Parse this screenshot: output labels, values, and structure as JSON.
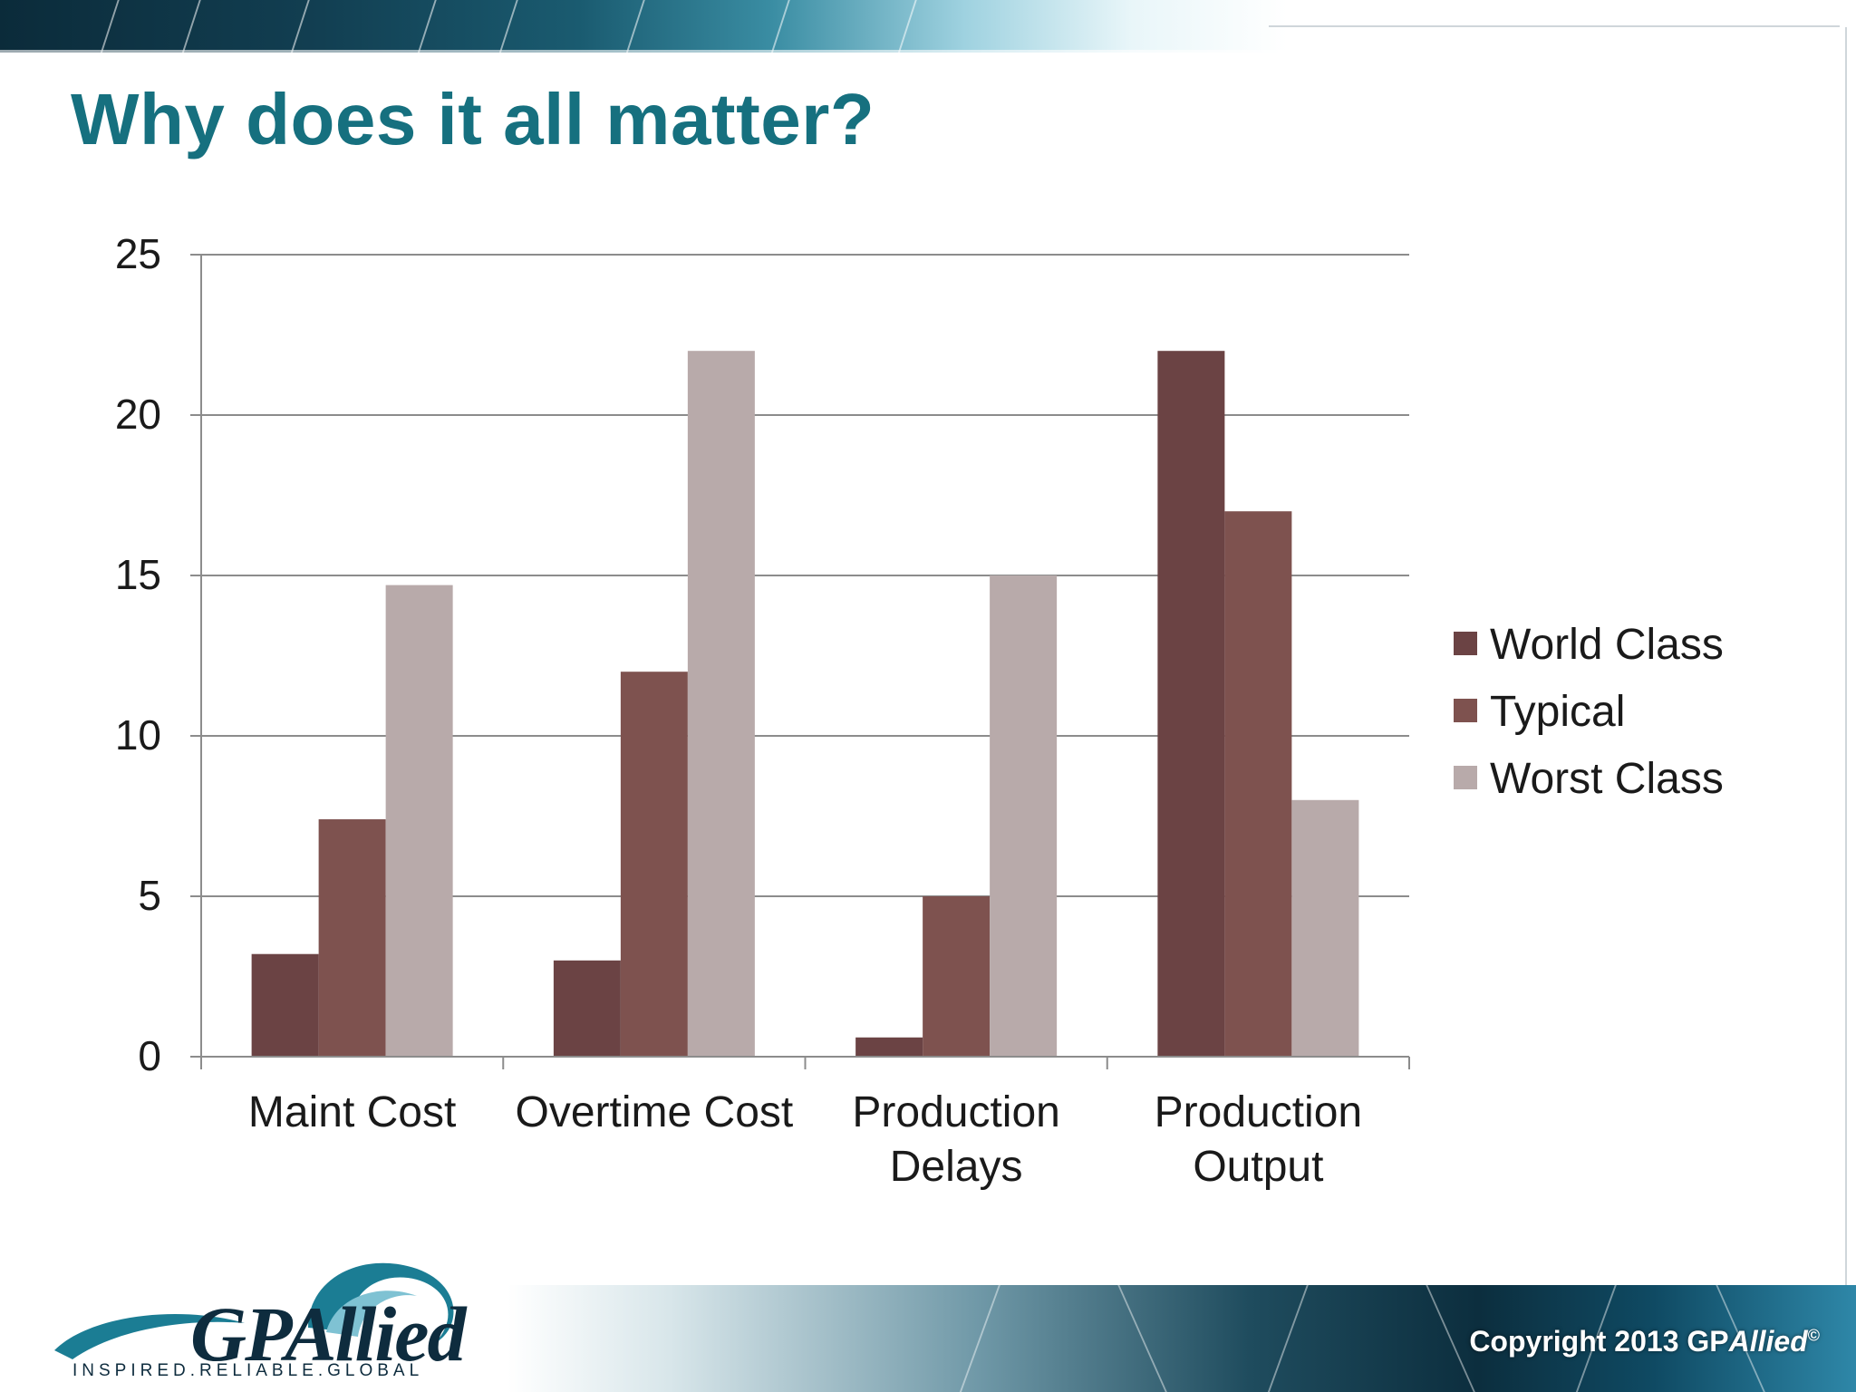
{
  "slide": {
    "title": "Why does it all matter?",
    "copyright_prefix": "Copyright 2013 GP",
    "copyright_brand": "Allied",
    "copyright_symbol": "©",
    "logo": {
      "word": "GPAllied",
      "tagline": "INSPIRED.RELIABLE.GLOBAL"
    },
    "colors": {
      "title": "#16707f",
      "world_class": "#6b4344",
      "typical": "#7e524f",
      "worst_class": "#b8aaaa"
    }
  },
  "chart_data": {
    "type": "bar",
    "title": "",
    "xlabel": "",
    "ylabel": "",
    "ylim": [
      0,
      25
    ],
    "yticks": [
      0,
      5,
      10,
      15,
      20,
      25
    ],
    "grid": true,
    "legend_position": "right",
    "categories": [
      [
        "Maint Cost"
      ],
      [
        "Overtime Cost"
      ],
      [
        "Production",
        "Delays"
      ],
      [
        "Production",
        "Output"
      ]
    ],
    "series": [
      {
        "name": "World Class",
        "color": "#6b4344",
        "values": [
          3.2,
          3,
          0.6,
          22
        ]
      },
      {
        "name": "Typical",
        "color": "#7e524f",
        "values": [
          7.4,
          12,
          5,
          17
        ]
      },
      {
        "name": "Worst Class",
        "color": "#b8aaaa",
        "values": [
          14.7,
          22,
          15,
          8
        ]
      }
    ]
  }
}
